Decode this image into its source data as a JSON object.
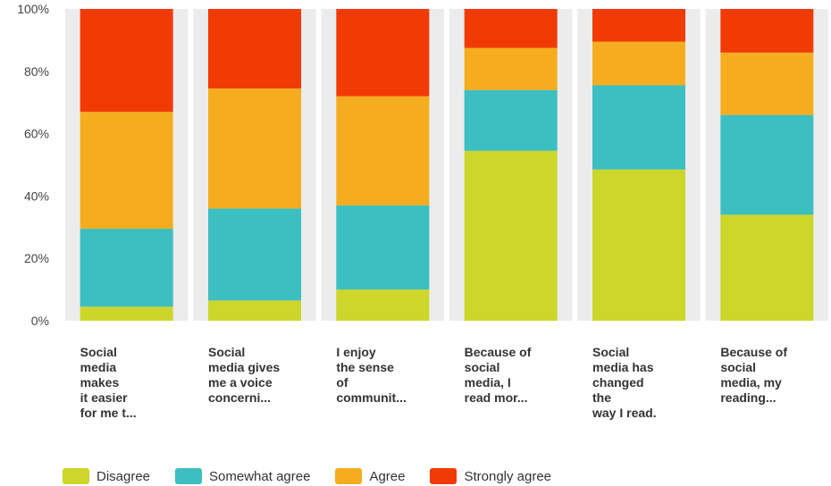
{
  "chart_data": {
    "type": "bar",
    "stacked": true,
    "percent": true,
    "ylim": [
      0,
      100
    ],
    "yticks": [
      "0%",
      "20%",
      "40%",
      "60%",
      "80%",
      "100%"
    ],
    "categories": [
      [
        "Social",
        "media",
        "makes",
        "it easier",
        "for me t..."
      ],
      [
        "Social",
        "media gives",
        "me a voice",
        "concerni..."
      ],
      [
        "I enjoy",
        "the sense",
        "of",
        "communit..."
      ],
      [
        "Because of",
        "social",
        "media, I",
        "read mor..."
      ],
      [
        "Social",
        "media has",
        "changed",
        "the",
        "way I read."
      ],
      [
        "Because of",
        "social",
        "media, my",
        "reading..."
      ]
    ],
    "series": [
      {
        "name": "Disagree",
        "color": "#cdd62a",
        "values": [
          4.5,
          6.5,
          10,
          54.5,
          48.5,
          34
        ]
      },
      {
        "name": "Somewhat agree",
        "color": "#3dbec1",
        "values": [
          25,
          29.5,
          27,
          19.5,
          27,
          32
        ]
      },
      {
        "name": "Agree",
        "color": "#f5ad1f",
        "values": [
          37.5,
          38.5,
          35,
          13.5,
          14,
          20
        ]
      },
      {
        "name": "Strongly agree",
        "color": "#f23a05",
        "values": [
          33,
          25.5,
          28,
          12.5,
          10.5,
          14
        ]
      }
    ],
    "grid": true,
    "legend_position": "bottom"
  }
}
